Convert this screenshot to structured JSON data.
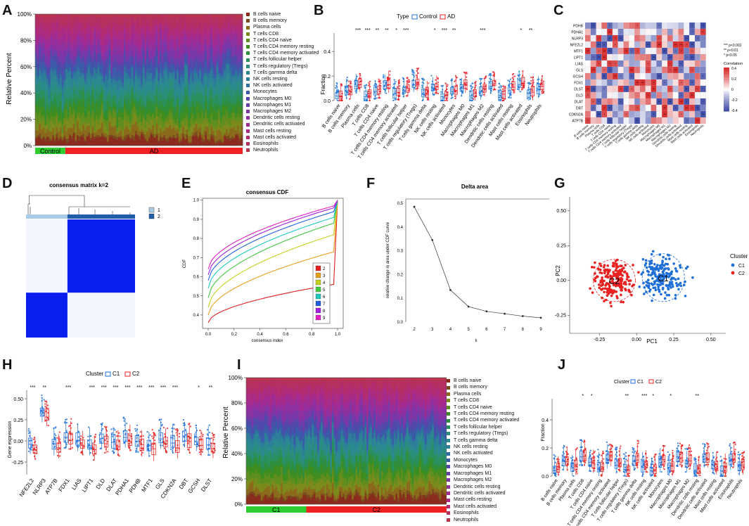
{
  "panel_labels": {
    "A": "A",
    "B": "B",
    "C": "C",
    "D": "D",
    "E": "E",
    "F": "F",
    "G": "G",
    "H": "H",
    "I": "I",
    "J": "J"
  },
  "immune_cells": [
    "B cells naive",
    "B cells memory",
    "Plasma cells",
    "T cells CD8",
    "T cells CD4 naive",
    "T cells CD4 memory resting",
    "T cells CD4 memory activated",
    "T cells follicular helper",
    "T cells regulatory (Tregs)",
    "T cells gamma delta",
    "NK cells resting",
    "NK cells activated",
    "Monocytes",
    "Macrophages M0",
    "Macrophages M1",
    "Macrophages M2",
    "Dendritic cells resting",
    "Dendritic cells activated",
    "Mast cells resting",
    "Mast cells activated",
    "Eosinophils",
    "Neutrophils"
  ],
  "cell_colors": [
    "#8b2b1e",
    "#7a4a1f",
    "#8a6a1a",
    "#7c8a1c",
    "#5f8e1e",
    "#3f8d1f",
    "#2e8e3a",
    "#2a8f5c",
    "#2a8e7a",
    "#2b8a8f",
    "#2d7e98",
    "#2f6da0",
    "#3b5aa8",
    "#5048ab",
    "#6440ab",
    "#7a37a8",
    "#8e30a0",
    "#a02b93",
    "#ac2b82",
    "#b22d70",
    "#b5305e",
    "#b8344d"
  ],
  "panelA": {
    "ylabel": "Relative Percent",
    "yticks": [
      "0%",
      "20%",
      "40%",
      "60%",
      "80%",
      "100%"
    ],
    "groups": [
      {
        "label": "Control",
        "color": "#2ecc2e"
      },
      {
        "label": "AD",
        "color": "#ee2222"
      }
    ]
  },
  "panelB": {
    "type_label": "Type",
    "legend": [
      {
        "label": "Control",
        "color": "#1f77d4"
      },
      {
        "label": "AD",
        "color": "#e8202a"
      }
    ],
    "ylabel": "Fraction",
    "yticks": [
      "0.0",
      "0.2",
      "0.4"
    ],
    "significance": [
      "",
      "",
      "***",
      "***",
      "**",
      "**",
      "*",
      "***",
      "",
      "",
      "*",
      "***",
      "**",
      "",
      "",
      "***",
      "",
      "",
      "",
      "*",
      "**",
      ""
    ]
  },
  "panelC": {
    "genes": [
      "PDHB",
      "PDHA1",
      "NLRP3",
      "NFE2L2",
      "MTF1",
      "LIPT1",
      "LIAS",
      "GLS",
      "GCSH",
      "FDX1",
      "DLST",
      "DLD",
      "DLAT",
      "DBT",
      "CDKN2A",
      "ATP7B"
    ],
    "legend_sig": [
      "*** p<0.001",
      "** p<0.01",
      "* p<0.05"
    ],
    "legend_title": "Correlation",
    "legend_ticks": [
      "0.4",
      "0.2",
      "0",
      "-0.2",
      "-0.4"
    ]
  },
  "panelD": {
    "title": "consensus matrix k=2",
    "legend": [
      "1",
      "2"
    ],
    "legend_colors": [
      "#a9cde6",
      "#1f5fa8"
    ]
  },
  "panelE": {
    "title": "consensus CDF",
    "xlabel": "consensus index",
    "ylabel": "CDF",
    "xticks": [
      "0.0",
      "0.2",
      "0.4",
      "0.6",
      "0.8",
      "1.0"
    ],
    "yticks": [
      "0.4",
      "0.5",
      "0.6",
      "0.7",
      "0.8",
      "0.9",
      "1.0"
    ],
    "legend": [
      "2",
      "3",
      "4",
      "5",
      "6",
      "7",
      "8",
      "9"
    ],
    "legend_colors": [
      "#e02020",
      "#e8a020",
      "#c8d020",
      "#40c840",
      "#20c8c0",
      "#2060e0",
      "#a020e0",
      "#e020c0"
    ]
  },
  "panelF": {
    "title": "Delta area",
    "xlabel": "k",
    "ylabel": "relative change in area under CDF curve",
    "xticks": [
      "2",
      "3",
      "4",
      "5",
      "6",
      "7",
      "8",
      "9"
    ],
    "yticks": [
      "0.0",
      "0.1",
      "0.2",
      "0.3",
      "0.4",
      "0.5"
    ],
    "k": [
      2,
      3,
      4,
      5,
      6,
      7,
      8,
      9
    ],
    "delta": [
      0.485,
      0.345,
      0.135,
      0.065,
      0.045,
      0.035,
      0.025,
      0.018
    ]
  },
  "panelG": {
    "xlabel": "PC1",
    "ylabel": "PC2",
    "xticks": [
      "-0.25",
      "0.00",
      "0.25",
      "0.50"
    ],
    "yticks": [
      "0.50",
      "0.25",
      "0.00",
      "-0.25"
    ],
    "cluster_title": "Cluster",
    "clusters": [
      {
        "label": "C1",
        "color": "#1f6fd8"
      },
      {
        "label": "C2",
        "color": "#e82020"
      }
    ]
  },
  "panelH": {
    "cluster_title": "Cluster",
    "legend": [
      {
        "label": "C1",
        "color": "#1f6fd8"
      },
      {
        "label": "C2",
        "color": "#e82020"
      }
    ],
    "ylabel": "Gene expression",
    "yticks": [
      "0.50",
      "0.25",
      "0.00",
      "-0.25"
    ],
    "genes": [
      "NFE2L2",
      "NLRP3",
      "ATP7B",
      "FDX1",
      "LIAS",
      "LIPT1",
      "DLD",
      "DLAT",
      "PDHA1",
      "PDHB",
      "MTF1",
      "GLS",
      "CDKN2A",
      "DBT",
      "GCSH",
      "DLST"
    ],
    "significance": [
      "***",
      "**",
      "",
      "***",
      "",
      "***",
      "***",
      "***",
      "***",
      "***",
      "***",
      "***",
      "***",
      "",
      "*",
      "**"
    ]
  },
  "panelI": {
    "ylabel": "Relative Percent",
    "yticks": [
      "0%",
      "20%",
      "40%",
      "60%",
      "80%",
      "100%"
    ],
    "groups": [
      {
        "label": "C1",
        "color": "#2ecc2e"
      },
      {
        "label": "C2",
        "color": "#ee2222"
      }
    ]
  },
  "panelJ": {
    "cluster_title": "Cluster",
    "legend": [
      {
        "label": "C1",
        "color": "#1f6fd8"
      },
      {
        "label": "C2",
        "color": "#e82020"
      }
    ],
    "ylabel": "Fraction",
    "yticks": [
      "0.0",
      "0.2",
      "0.4"
    ],
    "significance": [
      "",
      "",
      "",
      "*",
      "*",
      "",
      "",
      "",
      "**",
      "",
      "***",
      "*",
      "",
      "*",
      "",
      "",
      "**",
      "",
      "",
      "",
      "",
      ""
    ]
  }
}
